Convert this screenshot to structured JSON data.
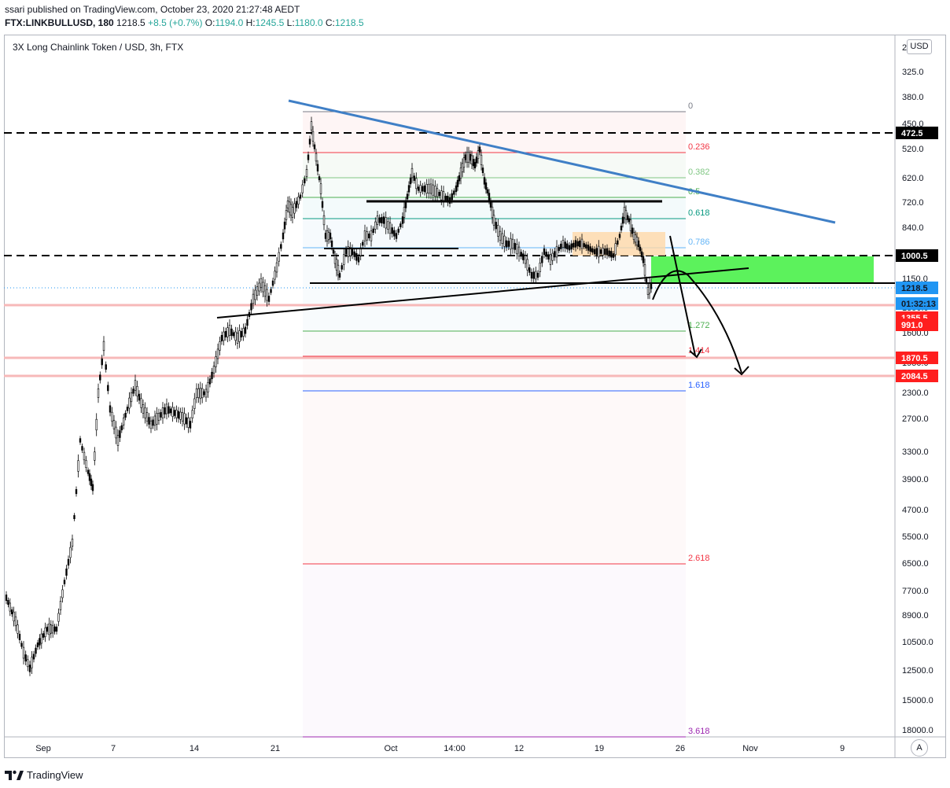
{
  "header": {
    "publisher_line": "ssari published on TradingView.com, October 23, 2020 21:27:48 AEDT",
    "symbol": "FTX:LINKBULLUSD, 180",
    "last": "1218.5",
    "change": "+8.5 (+0.7%)",
    "o_label": "O:",
    "o_val": "1194.0",
    "h_label": "H:",
    "h_val": "1245.5",
    "l_label": "L:",
    "l_val": "1180.0",
    "c_label": "C:",
    "c_val": "1218.5"
  },
  "chart_title": "3X Long Chainlink Token / USD, 3h, FTX",
  "currency_button": "USD",
  "auto_button": "A",
  "brand": "TradingView",
  "price_axis": {
    "ticks": [
      "2",
      "325.0",
      "380.0",
      "450.0",
      "520.0",
      "620.0",
      "720.0",
      "840.0",
      "1000.0",
      "1150.0",
      "1350.0",
      "1600.0",
      "1950.0",
      "2300.0",
      "2700.0",
      "3300.0",
      "3900.0",
      "4700.0",
      "5500.0",
      "6500.0",
      "7700.0",
      "8900.0",
      "10500.0",
      "12500.0",
      "15000.0",
      "18000.0"
    ],
    "badges": [
      {
        "text": "472.5",
        "color": "#000000"
      },
      {
        "text": "1000.5",
        "color": "#000000"
      },
      {
        "text": "1218.5",
        "color": "#2196f3"
      },
      {
        "text": "01:32:13",
        "color": "#2196f3"
      },
      {
        "text": "1355.5",
        "color": "#ff1e1e"
      },
      {
        "text": "991.0",
        "color": "#ff1e1e"
      },
      {
        "text": "1870.5",
        "color": "#ff1e1e"
      },
      {
        "text": "2084.5",
        "color": "#ff1e1e"
      }
    ]
  },
  "time_axis": {
    "labels": [
      "Sep",
      "7",
      "14",
      "21",
      "Oct",
      "14:00",
      "12",
      "19",
      "26",
      "Nov",
      "9"
    ]
  },
  "fib_levels": [
    {
      "label": "0",
      "color": "#787b86"
    },
    {
      "label": "0.236",
      "color": "#f23645"
    },
    {
      "label": "0.382",
      "color": "#81c784"
    },
    {
      "label": "0.5",
      "color": "#4caf50"
    },
    {
      "label": "0.618",
      "color": "#089981"
    },
    {
      "label": "0.786",
      "color": "#64b5f6"
    },
    {
      "label": "1.272",
      "color": "#4caf50"
    },
    {
      "label": "1.414",
      "color": "#f23645"
    },
    {
      "label": "1.618",
      "color": "#2962ff"
    },
    {
      "label": "2.618",
      "color": "#f23645"
    },
    {
      "label": "3.618",
      "color": "#9c27b0"
    }
  ],
  "colors": {
    "up": "#26a69a",
    "trendline_blue": "#3f7fc6",
    "green_zone": "#5cf25c",
    "orange_zone": "#ffd8a8"
  }
}
